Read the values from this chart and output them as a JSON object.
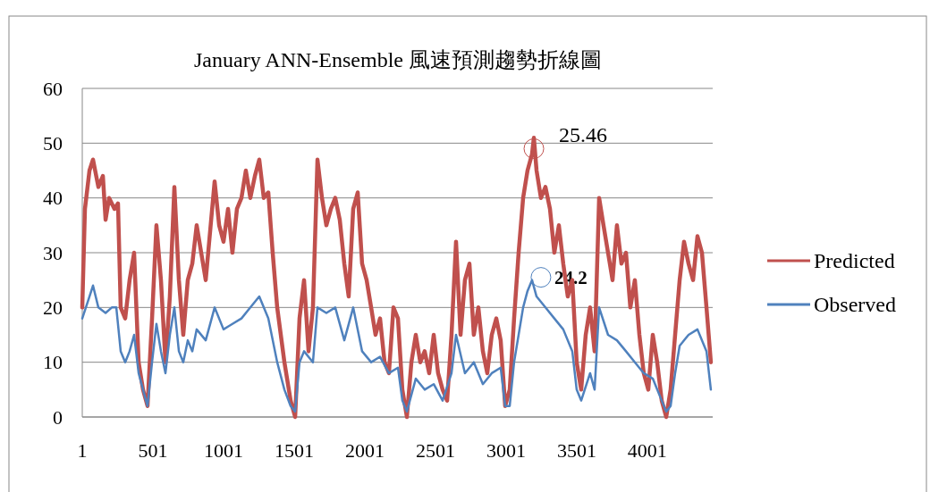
{
  "chart_data": {
    "type": "line",
    "title": "January ANN-Ensemble 風速預測趨勢折線圖",
    "xlim": [
      1,
      4464
    ],
    "xticks": [
      1,
      501,
      1001,
      1501,
      2001,
      2501,
      3001,
      3501,
      4001
    ],
    "ylim": [
      0,
      60
    ],
    "yticks": [
      0,
      10,
      20,
      30,
      40,
      50,
      60
    ],
    "grid": "y",
    "legend": "right",
    "marker": "none",
    "line_style": "solid",
    "annotations": [
      {
        "text": "25.46",
        "x": 3198,
        "y": 49
      },
      {
        "text": "24.2",
        "x": 3248,
        "y": 25.5
      }
    ],
    "series": [
      {
        "name": "Predicted",
        "color": "#c0504d",
        "x": [
          1,
          20,
          52,
          77,
          115,
          147,
          166,
          191,
          229,
          254,
          273,
          305,
          336,
          368,
          400,
          431,
          463,
          495,
          526,
          558,
          590,
          621,
          653,
          685,
          716,
          748,
          780,
          811,
          843,
          875,
          938,
          970,
          1001,
          1033,
          1064,
          1096,
          1128,
          1159,
          1191,
          1223,
          1254,
          1286,
          1318,
          1349,
          1381,
          1432,
          1476,
          1508,
          1539,
          1571,
          1603,
          1634,
          1666,
          1698,
          1729,
          1761,
          1792,
          1824,
          1856,
          1887,
          1919,
          1951,
          1982,
          2014,
          2046,
          2077,
          2109,
          2141,
          2172,
          2204,
          2236,
          2267,
          2299,
          2331,
          2362,
          2394,
          2425,
          2457,
          2489,
          2520,
          2552,
          2584,
          2615,
          2647,
          2679,
          2710,
          2742,
          2773,
          2805,
          2837,
          2868,
          2900,
          2932,
          2963,
          2995,
          3027,
          3058,
          3090,
          3122,
          3153,
          3185,
          3198,
          3217,
          3248,
          3280,
          3312,
          3343,
          3375,
          3406,
          3438,
          3470,
          3501,
          3533,
          3565,
          3596,
          3628,
          3660,
          3691,
          3723,
          3755,
          3786,
          3818,
          3850,
          3881,
          3913,
          3945,
          3976,
          4008,
          4040,
          4071,
          4103,
          4135,
          4166,
          4198,
          4230,
          4261,
          4293,
          4325,
          4356,
          4388,
          4420,
          4451
        ],
        "values": [
          20,
          38,
          45,
          47,
          42,
          44,
          36,
          40,
          38,
          39,
          20,
          18,
          25,
          30,
          10,
          5,
          2,
          18,
          35,
          25,
          10,
          22,
          42,
          25,
          15,
          25,
          28,
          35,
          30,
          25,
          43,
          35,
          32,
          38,
          30,
          38,
          40,
          45,
          40,
          44,
          47,
          40,
          41,
          30,
          20,
          10,
          3,
          0,
          18,
          25,
          12,
          20,
          47,
          40,
          35,
          38,
          40,
          36,
          28,
          22,
          38,
          41,
          28,
          25,
          20,
          15,
          18,
          10,
          8,
          20,
          18,
          5,
          0,
          10,
          15,
          10,
          12,
          8,
          15,
          8,
          5,
          3,
          15,
          32,
          15,
          25,
          28,
          15,
          20,
          12,
          8,
          15,
          18,
          14,
          2,
          5,
          18,
          30,
          40,
          45,
          48,
          51,
          45,
          40,
          42,
          38,
          30,
          35,
          28,
          22,
          25,
          10,
          5,
          15,
          20,
          12,
          40,
          35,
          30,
          25,
          35,
          28,
          30,
          20,
          25,
          15,
          8,
          5,
          15,
          10,
          3,
          0,
          5,
          15,
          25,
          32,
          28,
          25,
          33,
          30,
          20,
          10
        ]
      },
      {
        "name": "Observed",
        "color": "#4f81bd",
        "x": [
          1,
          52,
          77,
          115,
          166,
          210,
          242,
          273,
          305,
          336,
          368,
          400,
          431,
          463,
          495,
          526,
          558,
          590,
          621,
          653,
          685,
          716,
          748,
          780,
          811,
          875,
          938,
          1001,
          1064,
          1128,
          1191,
          1254,
          1318,
          1381,
          1432,
          1476,
          1508,
          1539,
          1571,
          1634,
          1666,
          1729,
          1792,
          1856,
          1919,
          1982,
          2046,
          2109,
          2172,
          2236,
          2267,
          2299,
          2362,
          2425,
          2489,
          2552,
          2615,
          2647,
          2710,
          2773,
          2837,
          2900,
          2963,
          2995,
          3027,
          3058,
          3090,
          3122,
          3153,
          3185,
          3217,
          3280,
          3343,
          3406,
          3470,
          3501,
          3533,
          3596,
          3628,
          3660,
          3723,
          3786,
          3850,
          3913,
          3976,
          4040,
          4103,
          4135,
          4166,
          4198,
          4230,
          4293,
          4356,
          4420,
          4451
        ],
        "values": [
          18,
          22,
          24,
          20,
          19,
          20,
          20,
          12,
          10,
          12,
          15,
          8,
          5,
          2,
          10,
          17,
          12,
          8,
          15,
          20,
          12,
          10,
          14,
          12,
          16,
          14,
          20,
          16,
          17,
          18,
          20,
          22,
          18,
          10,
          5,
          2,
          1,
          10,
          12,
          10,
          20,
          19,
          20,
          14,
          20,
          12,
          10,
          11,
          8,
          9,
          3,
          1,
          7,
          5,
          6,
          3,
          8,
          15,
          8,
          10,
          6,
          8,
          9,
          2,
          2,
          10,
          15,
          20,
          23,
          25,
          22,
          20,
          18,
          16,
          12,
          5,
          3,
          8,
          5,
          20,
          15,
          14,
          12,
          10,
          8,
          7,
          3,
          1,
          2,
          8,
          13,
          15,
          16,
          12,
          5
        ]
      }
    ]
  }
}
